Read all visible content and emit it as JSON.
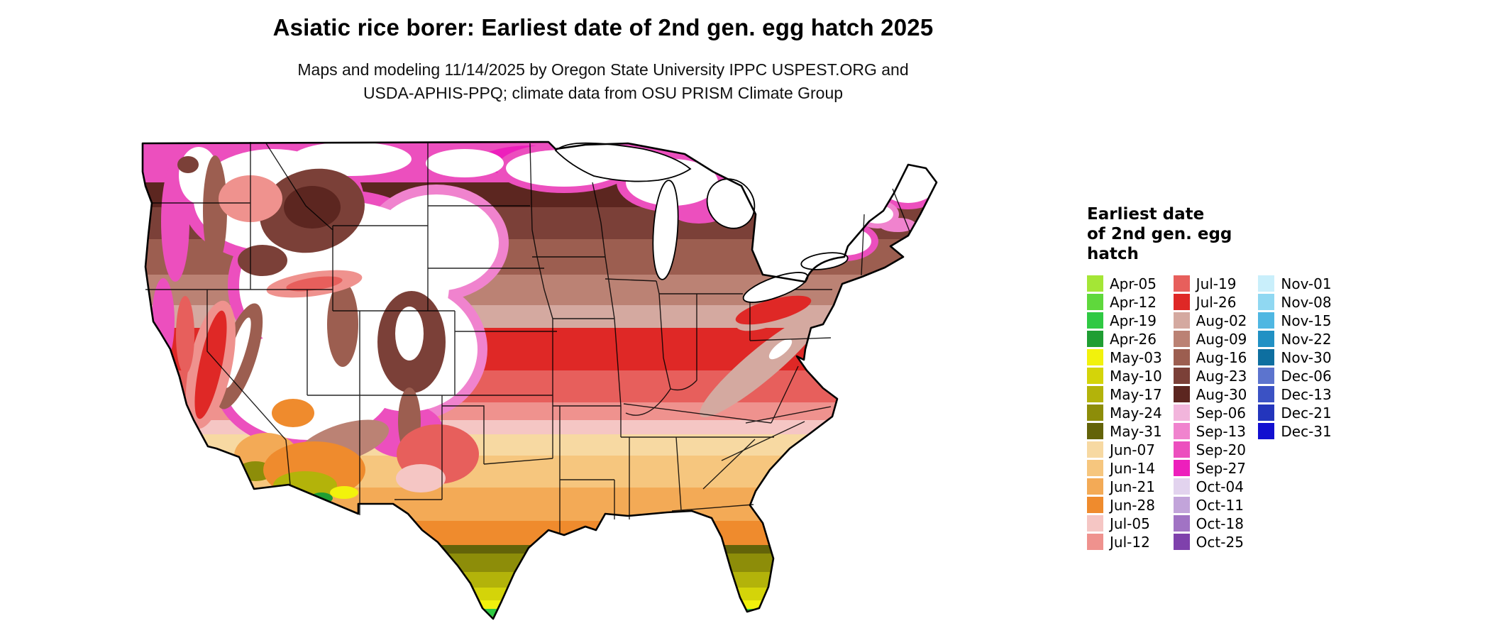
{
  "title": "Asiatic rice borer: Earliest date of 2nd gen. egg hatch 2025",
  "subtitle_line1": "Maps and modeling 11/14/2025 by Oregon State University IPPC USPEST.ORG and",
  "subtitle_line2": "USDA-APHIS-PPQ; climate data from OSU PRISM Climate Group",
  "map": {
    "region": "Continental United States choropleth of earliest 2nd generation egg hatch date"
  },
  "legend": {
    "title_lines": [
      "Earliest date",
      "of 2nd gen. egg",
      "hatch"
    ],
    "columns": [
      {
        "entries": [
          {
            "label": "Apr-05",
            "color": "#A4E636"
          },
          {
            "label": "Apr-12",
            "color": "#5FD83C"
          },
          {
            "label": "Apr-19",
            "color": "#2FC943"
          },
          {
            "label": "Apr-26",
            "color": "#1F9E33"
          },
          {
            "label": "May-03",
            "color": "#F2F20C"
          },
          {
            "label": "May-10",
            "color": "#D4D409"
          },
          {
            "label": "May-17",
            "color": "#B3B30A"
          },
          {
            "label": "May-24",
            "color": "#8D8D09"
          },
          {
            "label": "May-31",
            "color": "#636309"
          },
          {
            "label": "Jun-07",
            "color": "#F7D9A2"
          },
          {
            "label": "Jun-14",
            "color": "#F6C67E"
          },
          {
            "label": "Jun-21",
            "color": "#F3AA56"
          },
          {
            "label": "Jun-28",
            "color": "#EF8B2D"
          },
          {
            "label": "Jul-05",
            "color": "#F5C6C4"
          },
          {
            "label": "Jul-12",
            "color": "#EF928E"
          }
        ]
      },
      {
        "entries": [
          {
            "label": "Jul-19",
            "color": "#E75F5C"
          },
          {
            "label": "Jul-26",
            "color": "#DF2826"
          },
          {
            "label": "Aug-02",
            "color": "#D4A9A0"
          },
          {
            "label": "Aug-09",
            "color": "#BB8274"
          },
          {
            "label": "Aug-16",
            "color": "#9C5E50"
          },
          {
            "label": "Aug-23",
            "color": "#7B4038"
          },
          {
            "label": "Aug-30",
            "color": "#5C2620"
          },
          {
            "label": "Sep-06",
            "color": "#F2B5DC"
          },
          {
            "label": "Sep-13",
            "color": "#F083CE"
          },
          {
            "label": "Sep-20",
            "color": "#EC4FBE"
          },
          {
            "label": "Sep-27",
            "color": "#ED1FBC"
          },
          {
            "label": "Oct-04",
            "color": "#E2D3EE"
          },
          {
            "label": "Oct-11",
            "color": "#C2A4DA"
          },
          {
            "label": "Oct-18",
            "color": "#A173C4"
          },
          {
            "label": "Oct-25",
            "color": "#7F41AC"
          }
        ]
      },
      {
        "entries": [
          {
            "label": "Nov-01",
            "color": "#C9EFFB"
          },
          {
            "label": "Nov-08",
            "color": "#90D8F2"
          },
          {
            "label": "Nov-15",
            "color": "#4FB7E2"
          },
          {
            "label": "Nov-22",
            "color": "#2191C4"
          },
          {
            "label": "Nov-30",
            "color": "#0E6FA0"
          },
          {
            "label": "Dec-06",
            "color": "#5C74CE"
          },
          {
            "label": "Dec-13",
            "color": "#3B52C4"
          },
          {
            "label": "Dec-21",
            "color": "#2335BC"
          },
          {
            "label": "Dec-31",
            "color": "#120FD0"
          }
        ]
      }
    ]
  }
}
